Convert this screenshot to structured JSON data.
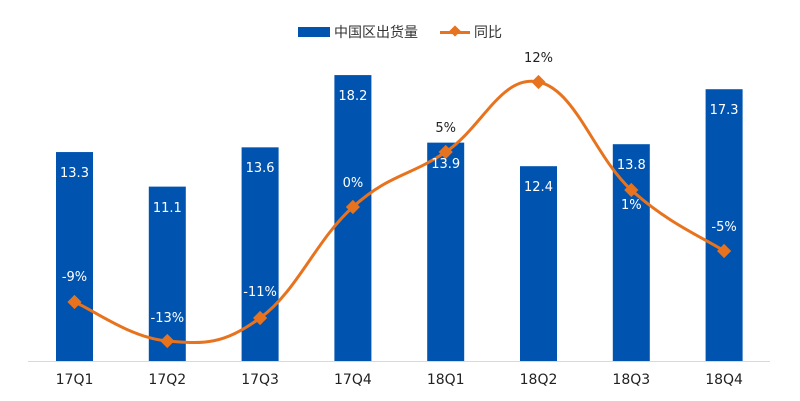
{
  "legend": {
    "bar_label": "中国区出货量",
    "line_label": "同比"
  },
  "colors": {
    "bar": "#0054B0",
    "line": "#E8731E",
    "axis": "#D9D9D9"
  },
  "chart_data": {
    "type": "bar+line",
    "title": "",
    "categories": [
      "17Q1",
      "17Q2",
      "17Q3",
      "17Q4",
      "18Q1",
      "18Q2",
      "18Q3",
      "18Q4"
    ],
    "series": [
      {
        "name": "中国区出货量",
        "type": "bar",
        "values": [
          13.3,
          11.1,
          13.6,
          18.2,
          13.9,
          12.4,
          13.8,
          17.3
        ],
        "labels": [
          "13.3",
          "11.1",
          "13.6",
          "18.2",
          "13.9",
          "12.4",
          "13.8",
          "17.3"
        ]
      },
      {
        "name": "同比",
        "type": "line",
        "values": [
          -9,
          -13,
          -11,
          0,
          5,
          12,
          1,
          -5
        ],
        "labels": [
          "-9%",
          "-13%",
          "-11%",
          "0%",
          "5%",
          "12%",
          "1%",
          "-5%"
        ]
      }
    ],
    "xlabel": "",
    "ylabel": "",
    "grid": false,
    "legend_position": "top"
  }
}
